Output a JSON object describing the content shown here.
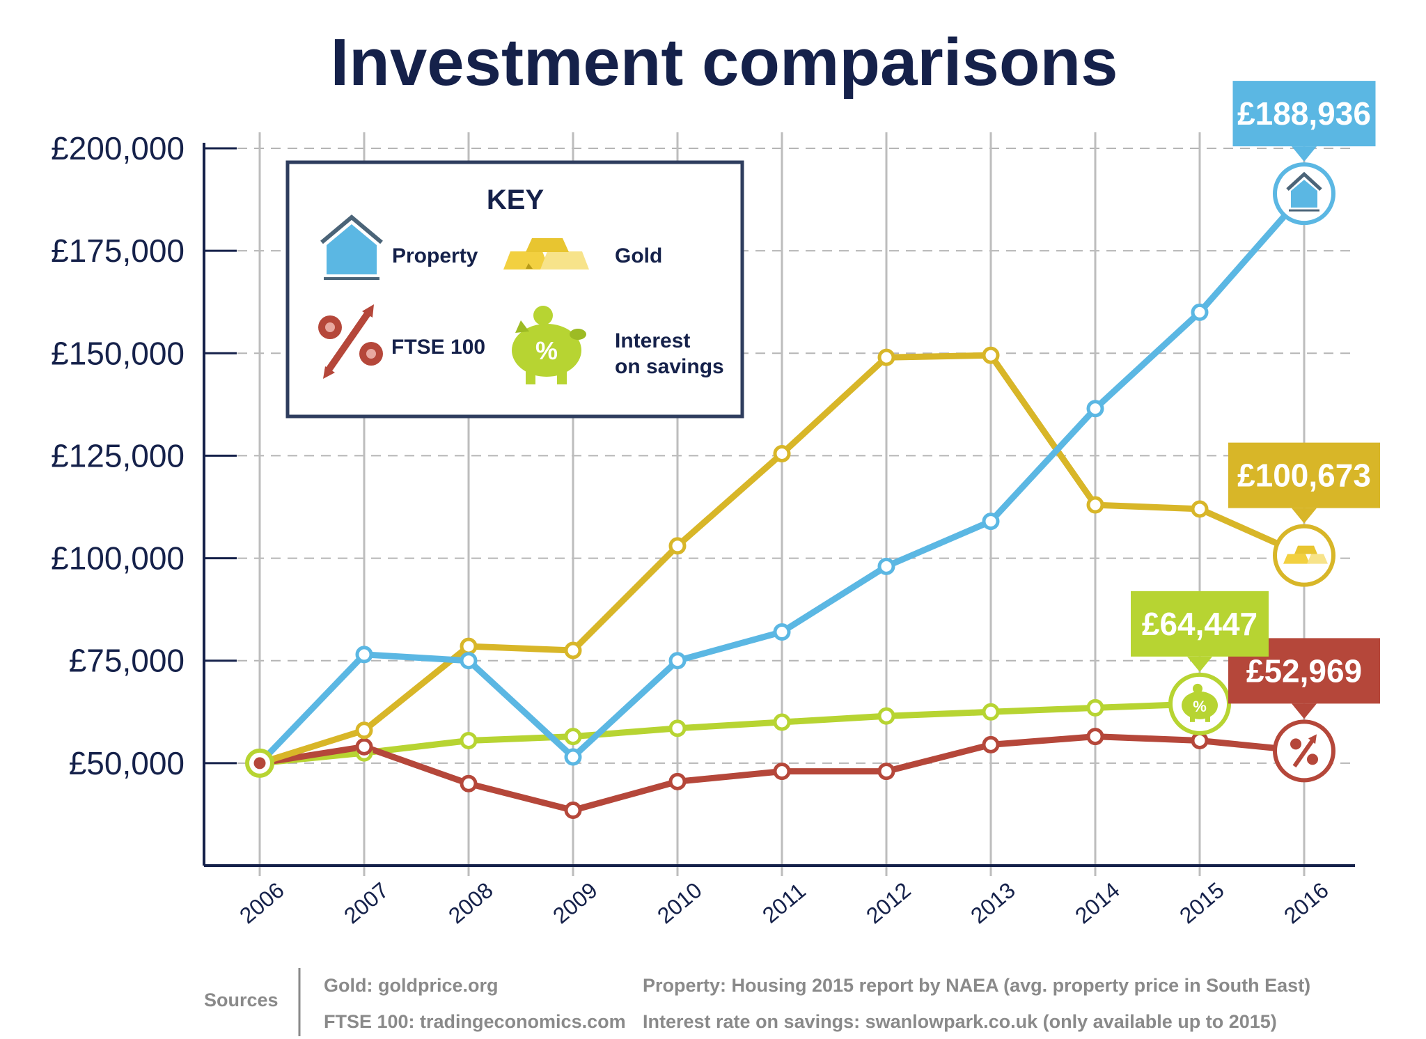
{
  "chart_data": {
    "type": "line",
    "title": "Investment comparisons",
    "x": [
      "2006",
      "2007",
      "2008",
      "2009",
      "2010",
      "2011",
      "2012",
      "2013",
      "2014",
      "2015",
      "2016"
    ],
    "y_ticks": [
      "£200,000",
      "£175,000",
      "£150,000",
      "£125,000",
      "£100,000",
      "£75,000",
      "£50,000"
    ],
    "ylim": [
      25000,
      200000
    ],
    "grid": true,
    "series": [
      {
        "name": "Property",
        "color": "#5bb7e3",
        "icon": "house-icon",
        "values": [
          50000,
          76500,
          75000,
          51500,
          75000,
          82000,
          98000,
          109000,
          136500,
          160000,
          188936
        ],
        "end_label": "£188,936"
      },
      {
        "name": "Gold",
        "color": "#d8b628",
        "icon": "gold-bars-icon",
        "values": [
          50000,
          58000,
          78500,
          77500,
          103000,
          125500,
          149000,
          149500,
          113000,
          112000,
          100673
        ],
        "end_label": "£100,673"
      },
      {
        "name": "FTSE 100",
        "color": "#b5473a",
        "icon": "percent-arrow-icon",
        "values": [
          50000,
          54000,
          45000,
          38500,
          45500,
          48000,
          48000,
          54500,
          56500,
          55500,
          52969
        ],
        "end_label": "£52,969"
      },
      {
        "name": "Interest on savings",
        "color": "#b7d432",
        "icon": "piggy-bank-icon",
        "values": [
          50000,
          52500,
          55500,
          56500,
          58500,
          60000,
          61500,
          62500,
          63500,
          64447,
          null
        ],
        "end_label": "£64,447"
      }
    ]
  },
  "key": {
    "title": "KEY",
    "property": "Property",
    "gold": "Gold",
    "ftse": "FTSE 100",
    "interest_line1": "Interest",
    "interest_line2": "on savings",
    "piggy_symbol": "%"
  },
  "sources": {
    "label": "Sources",
    "gold": "Gold: goldprice.org",
    "ftse": "FTSE 100: tradingeconomics.com",
    "property": "Property: Housing 2015 report by NAEA (avg. property price in South East)",
    "interest": "Interest rate on savings: swanlowpark.co.uk (only available up to 2015)"
  },
  "colors": {
    "navy": "#15214a",
    "grid": "#bbbbbb",
    "muted": "#8a8a8a"
  }
}
